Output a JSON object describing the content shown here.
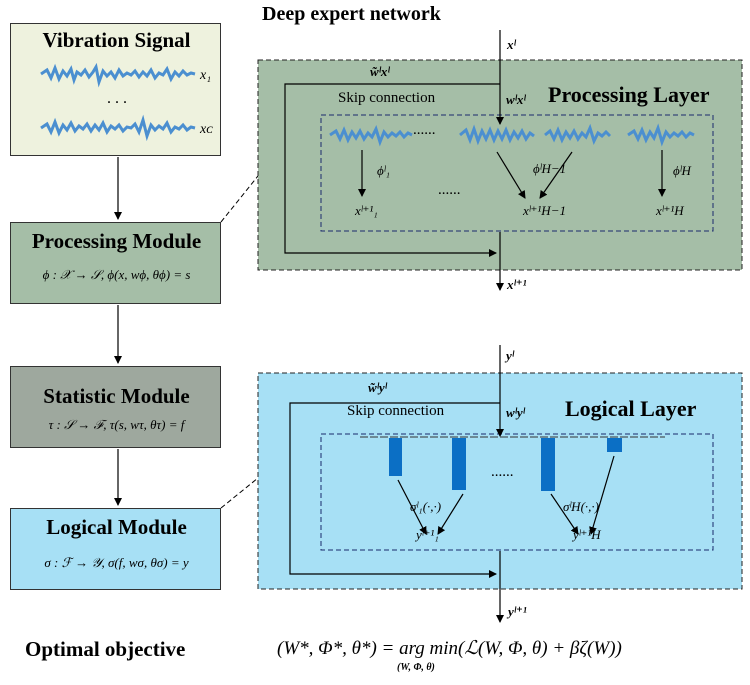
{
  "header": {
    "title": "Deep expert network"
  },
  "modules": {
    "vibration": {
      "title": "Vibration Signal",
      "x1": "x₁",
      "dots": ". . .",
      "xc": "xᴄ"
    },
    "processing": {
      "title": "Processing Module",
      "formula": "ϕ : 𝒳 → 𝒮, ϕ(x, wϕ, θϕ) = s"
    },
    "statistic": {
      "title": "Statistic Module",
      "formula": "τ : 𝒮 → ℱ, τ(s, wτ, θτ) = f"
    },
    "logical": {
      "title": "Logical Module",
      "formula": "σ : ℱ → 𝒴, σ(f, wσ, θσ) = y"
    }
  },
  "processing_layer": {
    "title": "Processing  Layer",
    "skip": "Skip connection",
    "input": "xˡ",
    "skip_weight": "w̃ˡxˡ",
    "main_weight": "wˡxˡ",
    "dots": "......",
    "phi1": "ϕˡ₁",
    "phiH1": "ϕˡH−1",
    "phiH": "ϕˡH",
    "out1": "xˡ⁺¹₁",
    "outH1": "xˡ⁺¹H−1",
    "outH": "xˡ⁺¹H",
    "output": "xˡ⁺¹"
  },
  "logical_layer": {
    "title": "Logical  Layer",
    "skip": "Skip connection",
    "input": "yˡ",
    "skip_weight": "w̃ˡyˡ",
    "main_weight": "wˡyˡ",
    "dots": "......",
    "sigma1": "σˡ₁(·,·)",
    "sigmaH": "σˡH(·,·)",
    "out1": "yˡ⁺¹₁",
    "outH": "yˡ⁺¹H",
    "output": "yˡ⁺¹"
  },
  "objective": {
    "label": "Optimal objective",
    "formula": "(W*, Φ*, θ*) = arg min(ℒ(W, Φ, θ) + βζ(W))",
    "subscript": "(W, Φ, θ)"
  },
  "colors": {
    "vibration_bg": "#eef2de",
    "module_green": "#a5bea7",
    "statistic_gray": "#9ea89e",
    "logical_blue": "#a7e0f5",
    "processing_layer_bg": "#a5bea7",
    "logical_layer_bg": "#a7e0f5",
    "signal_blue": "#4b8fd0",
    "bar_blue": "#0b6fc5"
  }
}
